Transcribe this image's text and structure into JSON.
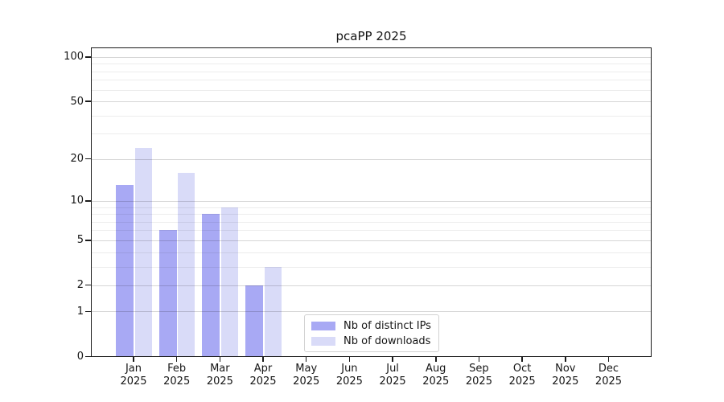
{
  "chart_data": {
    "type": "bar",
    "title": "pcaPP 2025",
    "months": [
      "Jan",
      "Feb",
      "Mar",
      "Apr",
      "May",
      "Jun",
      "Jul",
      "Aug",
      "Sep",
      "Oct",
      "Nov",
      "Dec"
    ],
    "year": "2025",
    "categories": [
      "Jan 2025",
      "Feb 2025",
      "Mar 2025",
      "Apr 2025",
      "May 2025",
      "Jun 2025",
      "Jul 2025",
      "Aug 2025",
      "Sep 2025",
      "Oct 2025",
      "Nov 2025",
      "Dec 2025"
    ],
    "series": [
      {
        "name": "Nb of distinct IPs",
        "color": "#a8a9f4",
        "values": [
          13,
          6,
          8,
          2,
          0,
          0,
          0,
          0,
          0,
          0,
          0,
          0
        ]
      },
      {
        "name": "Nb of downloads",
        "color": "#d9dbf8",
        "values": [
          24,
          16,
          9,
          3,
          0,
          0,
          0,
          0,
          0,
          0,
          0,
          0
        ]
      }
    ],
    "y_scale": "log1p",
    "ylim": [
      0,
      100
    ],
    "y_ticks": [
      0,
      1,
      2,
      5,
      10,
      20,
      50,
      100
    ],
    "y_minor_gridlines": [
      3,
      4,
      6,
      7,
      8,
      9,
      30,
      40,
      60,
      70,
      80,
      90
    ],
    "grid": true,
    "grid_color_major": "#d9d9d9",
    "grid_color_minor": "#ececec",
    "axis_color": "#1a1a1a",
    "legend_position": "inside-bottom-center"
  }
}
